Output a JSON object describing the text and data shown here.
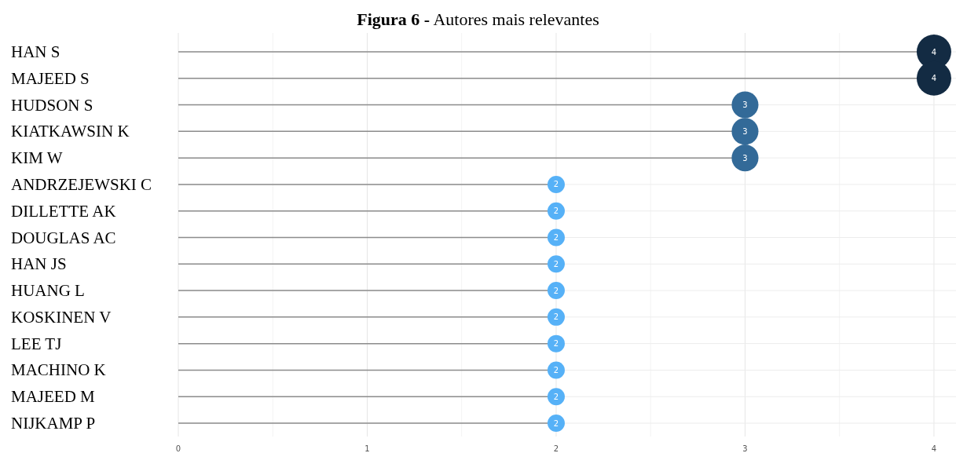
{
  "chart_data": {
    "type": "lollipop",
    "title": "Figura 6 - Autores mais relevantes",
    "orientation": "horizontal",
    "categories": [
      "HAN S",
      "MAJEED S",
      "HUDSON S",
      "KIATKAWSIN K",
      "KIM W",
      "ANDRZEJEWSKI C",
      "DILLETTE AK",
      "DOUGLAS AC",
      "HAN JS",
      "HUANG L",
      "KOSKINEN V",
      "LEE TJ",
      "MACHINO K",
      "MAJEED M",
      "NIJKAMP P"
    ],
    "values": [
      4,
      4,
      3,
      3,
      3,
      2,
      2,
      2,
      2,
      2,
      2,
      2,
      2,
      2,
      2
    ],
    "sizes": [
      1,
      1,
      0.6,
      0.6,
      0.6,
      0.25,
      0.25,
      0.25,
      0.25,
      0.25,
      0.25,
      0.25,
      0.25,
      0.25,
      0.25
    ],
    "colors": [
      "#132b43",
      "#132b43",
      "#336a98",
      "#336a98",
      "#336a98",
      "#56b1f7",
      "#56b1f7",
      "#56b1f7",
      "#56b1f7",
      "#56b1f7",
      "#56b1f7",
      "#56b1f7",
      "#56b1f7",
      "#56b1f7",
      "#56b1f7"
    ],
    "xlim": [
      0,
      4.1
    ],
    "xticks": [
      0,
      {
        "value": 0.5,
        "label": null
      },
      1,
      {
        "value": 1.5,
        "label": null
      },
      2,
      {
        "value": 2.5,
        "label": null
      },
      3,
      {
        "value": 3.5,
        "label": null
      },
      4
    ],
    "grid": true,
    "data_labels": true,
    "marker": "circle"
  }
}
